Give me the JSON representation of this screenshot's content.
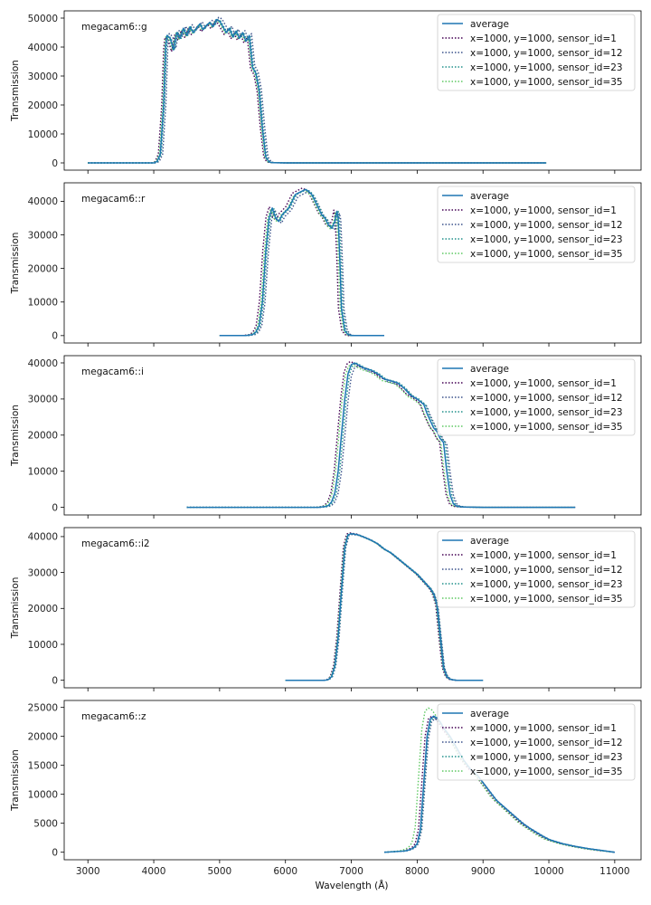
{
  "figure": {
    "xlabel": "Wavelength (Å)",
    "ylabel": "Transmission",
    "xlim": [
      2640,
      11400
    ],
    "xticks": [
      3000,
      4000,
      5000,
      6000,
      7000,
      8000,
      9000,
      10000,
      11000
    ],
    "legend_position": "top-right",
    "series_styles": [
      {
        "name": "average",
        "color": "#1f77b4",
        "dash": "solid"
      },
      {
        "name": "x=1000, y=1000, sensor_id=1",
        "color": "#440154",
        "dash": "dotted"
      },
      {
        "name": "x=1000, y=1000, sensor_id=12",
        "color": "#3b528b",
        "dash": "dotted"
      },
      {
        "name": "x=1000, y=1000, sensor_id=23",
        "color": "#21918c",
        "dash": "dotted"
      },
      {
        "name": "x=1000, y=1000, sensor_id=35",
        "color": "#5ec962",
        "dash": "dotted"
      }
    ]
  },
  "chart_data": [
    {
      "type": "line",
      "label": "megacam6::g",
      "ylabel": "Transmission",
      "ylim": [
        -2500,
        52500
      ],
      "yticks": [
        0,
        10000,
        20000,
        30000,
        40000,
        50000
      ],
      "series": [
        {
          "name": "average",
          "shift": 0,
          "scale": 1
        },
        {
          "name": "x=1000, y=1000, sensor_id=1",
          "shift": -30,
          "scale": 0.985
        },
        {
          "name": "x=1000, y=1000, sensor_id=12",
          "shift": 35,
          "scale": 1.015
        },
        {
          "name": "x=1000, y=1000, sensor_id=23",
          "shift": 15,
          "scale": 1.0
        },
        {
          "name": "x=1000, y=1000, sensor_id=35",
          "shift": -15,
          "scale": 0.995
        }
      ],
      "x": [
        3000,
        4000,
        4050,
        4100,
        4150,
        4180,
        4200,
        4250,
        4300,
        4350,
        4400,
        4450,
        4500,
        4550,
        4600,
        4650,
        4700,
        4750,
        4800,
        4850,
        4900,
        4950,
        5000,
        5050,
        5100,
        5150,
        5200,
        5250,
        5300,
        5350,
        5400,
        5450,
        5500,
        5550,
        5600,
        5650,
        5700,
        5750,
        5800,
        6000,
        7000,
        8000,
        9000,
        9960
      ],
      "y": [
        0,
        0,
        500,
        3000,
        20000,
        40000,
        44000,
        43000,
        39000,
        45000,
        43000,
        46500,
        44000,
        47000,
        45000,
        46500,
        48000,
        46000,
        47500,
        48500,
        47000,
        49500,
        49000,
        47000,
        45000,
        46500,
        43500,
        45500,
        43000,
        45000,
        42000,
        44000,
        33000,
        31000,
        25000,
        12000,
        2000,
        300,
        100,
        0,
        0,
        0,
        0,
        0
      ]
    },
    {
      "type": "line",
      "label": "megacam6::r",
      "ylabel": "Transmission",
      "ylim": [
        -2200,
        45500
      ],
      "yticks": [
        0,
        10000,
        20000,
        30000,
        40000
      ],
      "series": [
        {
          "name": "average",
          "shift": 0,
          "scale": 1
        },
        {
          "name": "x=1000, y=1000, sensor_id=1",
          "shift": -45,
          "scale": 1.01
        },
        {
          "name": "x=1000, y=1000, sensor_id=12",
          "shift": 40,
          "scale": 0.985
        },
        {
          "name": "x=1000, y=1000, sensor_id=23",
          "shift": 20,
          "scale": 1.0
        },
        {
          "name": "x=1000, y=1000, sensor_id=35",
          "shift": -20,
          "scale": 0.995
        }
      ],
      "x": [
        5000,
        5400,
        5500,
        5550,
        5600,
        5650,
        5700,
        5750,
        5800,
        5850,
        5900,
        5950,
        6000,
        6050,
        6100,
        6150,
        6200,
        6250,
        6300,
        6350,
        6400,
        6450,
        6500,
        6550,
        6600,
        6650,
        6700,
        6750,
        6780,
        6800,
        6830,
        6850,
        6900,
        6950,
        7000,
        7500
      ],
      "y": [
        0,
        0,
        300,
        1000,
        3000,
        10000,
        25000,
        35000,
        38000,
        35000,
        34000,
        36000,
        37000,
        38000,
        40000,
        42000,
        42500,
        43000,
        43500,
        43000,
        42000,
        40000,
        38000,
        36000,
        35000,
        33000,
        32000,
        34000,
        37000,
        35000,
        20000,
        8000,
        1500,
        300,
        0,
        0
      ]
    },
    {
      "type": "line",
      "label": "megacam6::i",
      "ylabel": "Transmission",
      "ylim": [
        -2100,
        42000
      ],
      "yticks": [
        0,
        10000,
        20000,
        30000,
        40000
      ],
      "series": [
        {
          "name": "average",
          "shift": 0,
          "scale": 1
        },
        {
          "name": "x=1000, y=1000, sensor_id=1",
          "shift": -60,
          "scale": 1.01
        },
        {
          "name": "x=1000, y=1000, sensor_id=12",
          "shift": 50,
          "scale": 0.98
        },
        {
          "name": "x=1000, y=1000, sensor_id=23",
          "shift": 25,
          "scale": 1.0
        },
        {
          "name": "x=1000, y=1000, sensor_id=35",
          "shift": -40,
          "scale": 0.99
        }
      ],
      "x": [
        4500,
        6500,
        6600,
        6650,
        6700,
        6750,
        6800,
        6850,
        6900,
        6950,
        7000,
        7050,
        7100,
        7200,
        7300,
        7400,
        7500,
        7600,
        7700,
        7800,
        7900,
        8000,
        8100,
        8150,
        8200,
        8250,
        8300,
        8350,
        8400,
        8450,
        8500,
        8550,
        8600,
        8700,
        9000,
        10400
      ],
      "y": [
        0,
        0,
        200,
        500,
        1500,
        4000,
        10000,
        20000,
        30000,
        37000,
        39500,
        40000,
        39500,
        38500,
        38000,
        37000,
        35500,
        35000,
        34500,
        33000,
        31000,
        30000,
        28500,
        26000,
        24000,
        22000,
        21000,
        19000,
        18000,
        10000,
        3500,
        1000,
        300,
        100,
        0,
        0
      ]
    },
    {
      "type": "line",
      "label": "megacam6::i2",
      "ylabel": "Transmission",
      "ylim": [
        -2100,
        42500
      ],
      "yticks": [
        0,
        10000,
        20000,
        30000,
        40000
      ],
      "series": [
        {
          "name": "average",
          "shift": 0,
          "scale": 1
        },
        {
          "name": "x=1000, y=1000, sensor_id=1",
          "shift": -20,
          "scale": 1.005
        },
        {
          "name": "x=1000, y=1000, sensor_id=12",
          "shift": 15,
          "scale": 0.995
        },
        {
          "name": "x=1000, y=1000, sensor_id=23",
          "shift": 10,
          "scale": 1.0
        },
        {
          "name": "x=1000, y=1000, sensor_id=35",
          "shift": -10,
          "scale": 1.0
        }
      ],
      "x": [
        6000,
        6600,
        6650,
        6700,
        6750,
        6800,
        6850,
        6900,
        6950,
        7000,
        7100,
        7200,
        7300,
        7400,
        7500,
        7600,
        7700,
        7800,
        7900,
        8000,
        8100,
        8200,
        8250,
        8300,
        8350,
        8400,
        8450,
        8500,
        8550,
        8600,
        9000
      ],
      "y": [
        0,
        0,
        200,
        1000,
        4000,
        12000,
        25000,
        37000,
        40500,
        40800,
        40500,
        39800,
        39000,
        38000,
        36500,
        35500,
        34000,
        32500,
        31000,
        29500,
        27500,
        25500,
        24000,
        21000,
        12000,
        3500,
        1000,
        300,
        100,
        0,
        0
      ]
    },
    {
      "type": "line",
      "label": "megacam6::z",
      "ylabel": "Transmission",
      "ylim": [
        -1300,
        26200
      ],
      "yticks": [
        0,
        5000,
        10000,
        15000,
        20000,
        25000
      ],
      "series": [
        {
          "name": "average",
          "shift": 0,
          "scale": 1
        },
        {
          "name": "x=1000, y=1000, sensor_id=1",
          "shift": -30,
          "scale": 1.0
        },
        {
          "name": "x=1000, y=1000, sensor_id=12",
          "shift": 20,
          "scale": 0.98
        },
        {
          "name": "x=1000, y=1000, sensor_id=23",
          "shift": 10,
          "scale": 0.99
        },
        {
          "name": "x=1000, y=1000, sensor_id=35",
          "shift": -80,
          "scale": 1.06
        }
      ],
      "x": [
        7500,
        7800,
        7850,
        7900,
        7950,
        8000,
        8050,
        8100,
        8150,
        8200,
        8250,
        8300,
        8350,
        8400,
        8500,
        8600,
        8700,
        8800,
        8900,
        9000,
        9100,
        9200,
        9300,
        9400,
        9500,
        9600,
        9700,
        9800,
        9900,
        10000,
        10200,
        10400,
        10600,
        10800,
        11000
      ],
      "y": [
        0,
        200,
        300,
        500,
        800,
        1500,
        4000,
        12000,
        20000,
        23000,
        23500,
        23200,
        22500,
        21500,
        20000,
        18000,
        16000,
        14500,
        13500,
        12000,
        10500,
        9000,
        8000,
        7000,
        6000,
        5000,
        4200,
        3500,
        2800,
        2200,
        1500,
        1000,
        600,
        300,
        0
      ]
    }
  ]
}
